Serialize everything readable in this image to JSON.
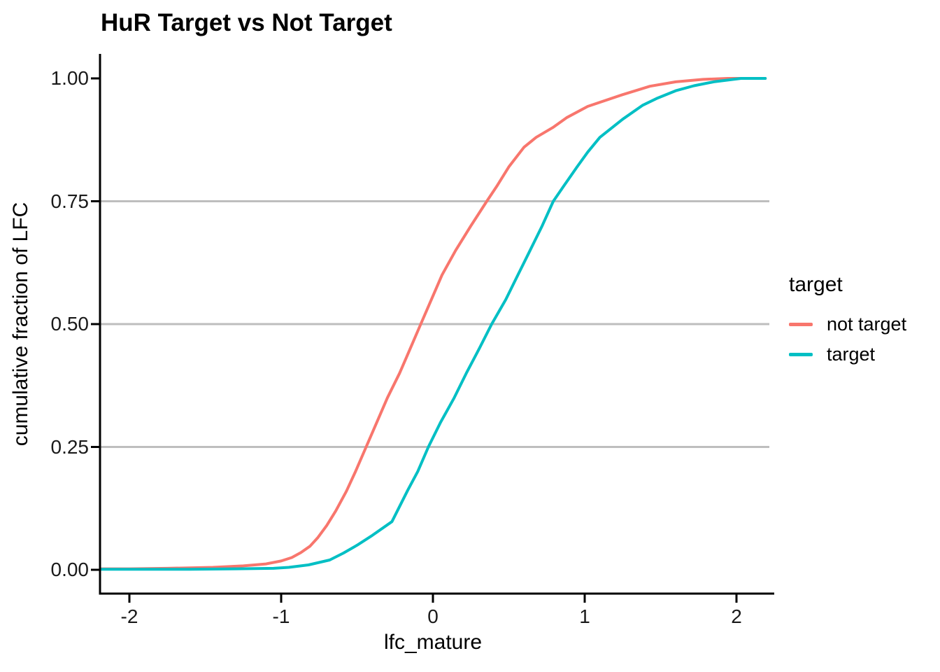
{
  "chart_data": {
    "type": "line",
    "subtype": "ecdf",
    "title": "HuR Target vs Not Target",
    "xlabel": "lfc_mature",
    "ylabel": "cumulative fraction of LFC",
    "xlim": [
      -2.19,
      2.25
    ],
    "ylim": [
      -0.05,
      1.05
    ],
    "x_ticks": [
      -2,
      -1,
      0,
      1,
      2
    ],
    "x_tick_labels": [
      "-2",
      "-1",
      "0",
      "1",
      "2"
    ],
    "y_ticks": [
      0,
      0.25,
      0.5,
      0.75,
      1
    ],
    "y_tick_labels": [
      "0.00",
      "0.25",
      "0.50",
      "0.75",
      "1.00"
    ],
    "gridlines_y": [
      0.25,
      0.5,
      0.75
    ],
    "grid_on": true,
    "grid_color": "#BEBEBE",
    "axis_color": "#000000",
    "legend": {
      "title": "target",
      "position": "right",
      "entries": [
        {
          "label": "not target",
          "color": "#F8766D"
        },
        {
          "label": "target",
          "color": "#00BFC4"
        }
      ]
    },
    "series": [
      {
        "name": "not target",
        "color": "#F8766D",
        "points": [
          [
            -2.19,
            0.002
          ],
          [
            -2.0,
            0.002
          ],
          [
            -1.75,
            0.003
          ],
          [
            -1.45,
            0.005
          ],
          [
            -1.25,
            0.008
          ],
          [
            -1.1,
            0.012
          ],
          [
            -1.0,
            0.018
          ],
          [
            -0.93,
            0.025
          ],
          [
            -0.87,
            0.035
          ],
          [
            -0.81,
            0.048
          ],
          [
            -0.76,
            0.065
          ],
          [
            -0.7,
            0.09
          ],
          [
            -0.64,
            0.12
          ],
          [
            -0.57,
            0.16
          ],
          [
            -0.51,
            0.2
          ],
          [
            -0.44,
            0.25
          ],
          [
            -0.37,
            0.3
          ],
          [
            -0.3,
            0.35
          ],
          [
            -0.22,
            0.4
          ],
          [
            -0.15,
            0.45
          ],
          [
            -0.08,
            0.5
          ],
          [
            -0.01,
            0.55
          ],
          [
            0.06,
            0.6
          ],
          [
            0.15,
            0.65
          ],
          [
            0.25,
            0.7
          ],
          [
            0.355,
            0.75
          ],
          [
            0.42,
            0.78
          ],
          [
            0.5,
            0.82
          ],
          [
            0.6,
            0.86
          ],
          [
            0.68,
            0.88
          ],
          [
            0.79,
            0.9
          ],
          [
            0.88,
            0.92
          ],
          [
            1.02,
            0.943
          ],
          [
            1.25,
            0.967
          ],
          [
            1.43,
            0.984
          ],
          [
            1.6,
            0.993
          ],
          [
            1.78,
            0.998
          ],
          [
            1.94,
            1.0
          ],
          [
            2.19,
            1.0
          ]
        ]
      },
      {
        "name": "target",
        "color": "#00BFC4",
        "points": [
          [
            -2.19,
            0.001
          ],
          [
            -1.6,
            0.001
          ],
          [
            -1.3,
            0.002
          ],
          [
            -1.05,
            0.003
          ],
          [
            -0.95,
            0.005
          ],
          [
            -0.82,
            0.01
          ],
          [
            -0.68,
            0.02
          ],
          [
            -0.59,
            0.034
          ],
          [
            -0.5,
            0.05
          ],
          [
            -0.4,
            0.07
          ],
          [
            -0.27,
            0.098
          ],
          [
            -0.166,
            0.162
          ],
          [
            -0.1,
            0.2
          ],
          [
            -0.03,
            0.25
          ],
          [
            0.05,
            0.3
          ],
          [
            0.14,
            0.35
          ],
          [
            0.22,
            0.4
          ],
          [
            0.305,
            0.45
          ],
          [
            0.387,
            0.5
          ],
          [
            0.48,
            0.55
          ],
          [
            0.56,
            0.6
          ],
          [
            0.64,
            0.65
          ],
          [
            0.72,
            0.7
          ],
          [
            0.793,
            0.75
          ],
          [
            0.86,
            0.78
          ],
          [
            0.95,
            0.82
          ],
          [
            1.02,
            0.85
          ],
          [
            1.1,
            0.88
          ],
          [
            1.25,
            0.917
          ],
          [
            1.38,
            0.945
          ],
          [
            1.48,
            0.96
          ],
          [
            1.6,
            0.975
          ],
          [
            1.72,
            0.985
          ],
          [
            1.85,
            0.993
          ],
          [
            2.03,
            1.0
          ],
          [
            2.19,
            1.0
          ]
        ]
      }
    ]
  }
}
